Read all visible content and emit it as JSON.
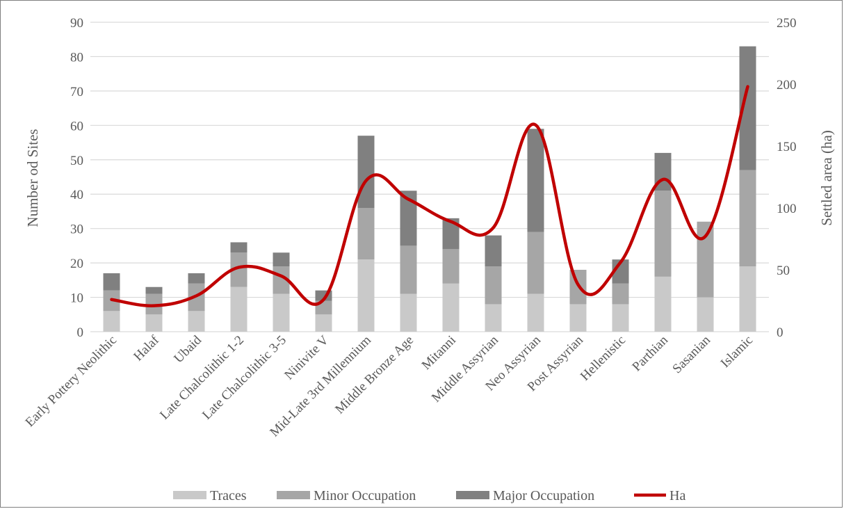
{
  "chart_data": {
    "type": "bar",
    "stacked": true,
    "categories": [
      "Early Pottery Neolithic",
      "Halaf",
      "Ubaid",
      "Late Chalcolithic 1-2",
      "Late Chalcolithic 3-5",
      "Ninivite V",
      "Mid-Late 3rd Millennium",
      "Middle Bronze Age",
      "Mitanni",
      "Middle Assyrian",
      "Neo Assyrian",
      "Post Assyrian",
      "Hellenistic",
      "Parthian",
      "Sasanian",
      "Islamic"
    ],
    "series": [
      {
        "name": "Traces",
        "axis": "left",
        "color": "#c9c9c9",
        "values": [
          6,
          5,
          6,
          13,
          11,
          5,
          21,
          11,
          14,
          8,
          11,
          8,
          8,
          16,
          10,
          19
        ]
      },
      {
        "name": "Minor Occupation",
        "axis": "left",
        "color": "#a6a6a6",
        "values": [
          6,
          6,
          8,
          10,
          8,
          4,
          15,
          14,
          10,
          11,
          18,
          10,
          6,
          25,
          22,
          28
        ]
      },
      {
        "name": "Major Occupation",
        "axis": "left",
        "color": "#808080",
        "values": [
          5,
          2,
          3,
          3,
          4,
          3,
          21,
          16,
          9,
          9,
          30,
          0,
          7,
          11,
          0,
          36
        ]
      },
      {
        "name": "Ha",
        "axis": "right",
        "type": "line",
        "color": "#c00000",
        "values": [
          26,
          21,
          29,
          52,
          45,
          26,
          122,
          107,
          89,
          84,
          167,
          38,
          56,
          123,
          77,
          198
        ]
      }
    ],
    "ylabel": "Number od Sites",
    "y2label": "Settled area (ha)",
    "ylim": [
      0,
      90
    ],
    "yticks": [
      0,
      10,
      20,
      30,
      40,
      50,
      60,
      70,
      80,
      90
    ],
    "y2lim": [
      0,
      250
    ],
    "y2ticks": [
      0,
      50,
      100,
      150,
      200,
      250
    ],
    "grid": true,
    "legend": "bottom"
  }
}
